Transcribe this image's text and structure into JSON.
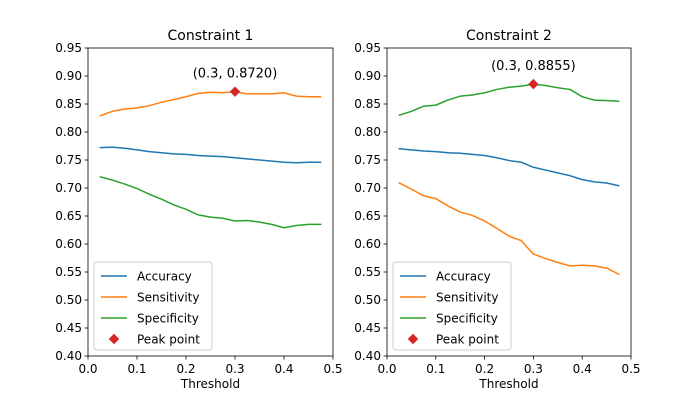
{
  "colors": {
    "accuracy": "#1f77b4",
    "sensitivity": "#ff7f0e",
    "specificity": "#2ca02c",
    "peak": "#d62728",
    "legend_border": "#cccccc"
  },
  "chart_data": [
    {
      "type": "line",
      "title": "Constraint 1",
      "xlabel": "Threshold",
      "ylabel": "",
      "xlim": [
        0.0,
        0.5
      ],
      "ylim": [
        0.4,
        0.95
      ],
      "xticks": [
        "0.0",
        "0.1",
        "0.2",
        "0.3",
        "0.4",
        "0.5"
      ],
      "yticks": [
        "0.40",
        "0.45",
        "0.50",
        "0.55",
        "0.60",
        "0.65",
        "0.70",
        "0.75",
        "0.80",
        "0.85",
        "0.90",
        "0.95"
      ],
      "grid": false,
      "legend_position": "lower-left",
      "x": [
        0.025,
        0.05,
        0.075,
        0.1,
        0.125,
        0.15,
        0.175,
        0.2,
        0.225,
        0.25,
        0.275,
        0.3,
        0.325,
        0.35,
        0.375,
        0.4,
        0.425,
        0.45,
        0.475
      ],
      "series": [
        {
          "name": "Accuracy",
          "color_key": "accuracy",
          "values": [
            0.772,
            0.773,
            0.771,
            0.768,
            0.765,
            0.763,
            0.761,
            0.76,
            0.758,
            0.757,
            0.756,
            0.754,
            0.752,
            0.75,
            0.748,
            0.746,
            0.745,
            0.746,
            0.746
          ]
        },
        {
          "name": "Sensitivity",
          "color_key": "sensitivity",
          "values": [
            0.829,
            0.837,
            0.841,
            0.843,
            0.847,
            0.853,
            0.858,
            0.863,
            0.869,
            0.871,
            0.87,
            0.872,
            0.868,
            0.868,
            0.868,
            0.87,
            0.864,
            0.863,
            0.863
          ]
        },
        {
          "name": "Specificity",
          "color_key": "specificity",
          "values": [
            0.72,
            0.714,
            0.707,
            0.699,
            0.689,
            0.68,
            0.67,
            0.662,
            0.652,
            0.648,
            0.646,
            0.641,
            0.642,
            0.639,
            0.635,
            0.629,
            0.633,
            0.635,
            0.635
          ]
        }
      ],
      "peak": {
        "name": "Peak point",
        "x": 0.3,
        "y": 0.872,
        "label": "(0.3, 0.8720)"
      }
    },
    {
      "type": "line",
      "title": "Constraint 2",
      "xlabel": "Threshold",
      "ylabel": "",
      "xlim": [
        0.0,
        0.5
      ],
      "ylim": [
        0.4,
        0.95
      ],
      "xticks": [
        "0.0",
        "0.1",
        "0.2",
        "0.3",
        "0.4",
        "0.5"
      ],
      "yticks": [
        "0.40",
        "0.45",
        "0.50",
        "0.55",
        "0.60",
        "0.65",
        "0.70",
        "0.75",
        "0.80",
        "0.85",
        "0.90",
        "0.95"
      ],
      "grid": false,
      "legend_position": "lower-left",
      "x": [
        0.025,
        0.05,
        0.075,
        0.1,
        0.125,
        0.15,
        0.175,
        0.2,
        0.225,
        0.25,
        0.275,
        0.3,
        0.325,
        0.35,
        0.375,
        0.4,
        0.425,
        0.45,
        0.475
      ],
      "series": [
        {
          "name": "Accuracy",
          "color_key": "accuracy",
          "values": [
            0.77,
            0.768,
            0.766,
            0.765,
            0.763,
            0.762,
            0.76,
            0.758,
            0.754,
            0.749,
            0.746,
            0.737,
            0.732,
            0.727,
            0.722,
            0.715,
            0.711,
            0.709,
            0.704
          ]
        },
        {
          "name": "Sensitivity",
          "color_key": "sensitivity",
          "values": [
            0.709,
            0.698,
            0.686,
            0.681,
            0.668,
            0.657,
            0.651,
            0.641,
            0.628,
            0.614,
            0.606,
            0.582,
            0.574,
            0.567,
            0.561,
            0.562,
            0.561,
            0.557,
            0.546
          ]
        },
        {
          "name": "Specificity",
          "color_key": "specificity",
          "values": [
            0.83,
            0.837,
            0.846,
            0.848,
            0.857,
            0.864,
            0.866,
            0.87,
            0.876,
            0.88,
            0.882,
            0.8855,
            0.883,
            0.879,
            0.876,
            0.863,
            0.857,
            0.856,
            0.855
          ]
        }
      ],
      "peak": {
        "name": "Peak point",
        "x": 0.3,
        "y": 0.8855,
        "label": "(0.3, 0.8855)"
      }
    }
  ]
}
